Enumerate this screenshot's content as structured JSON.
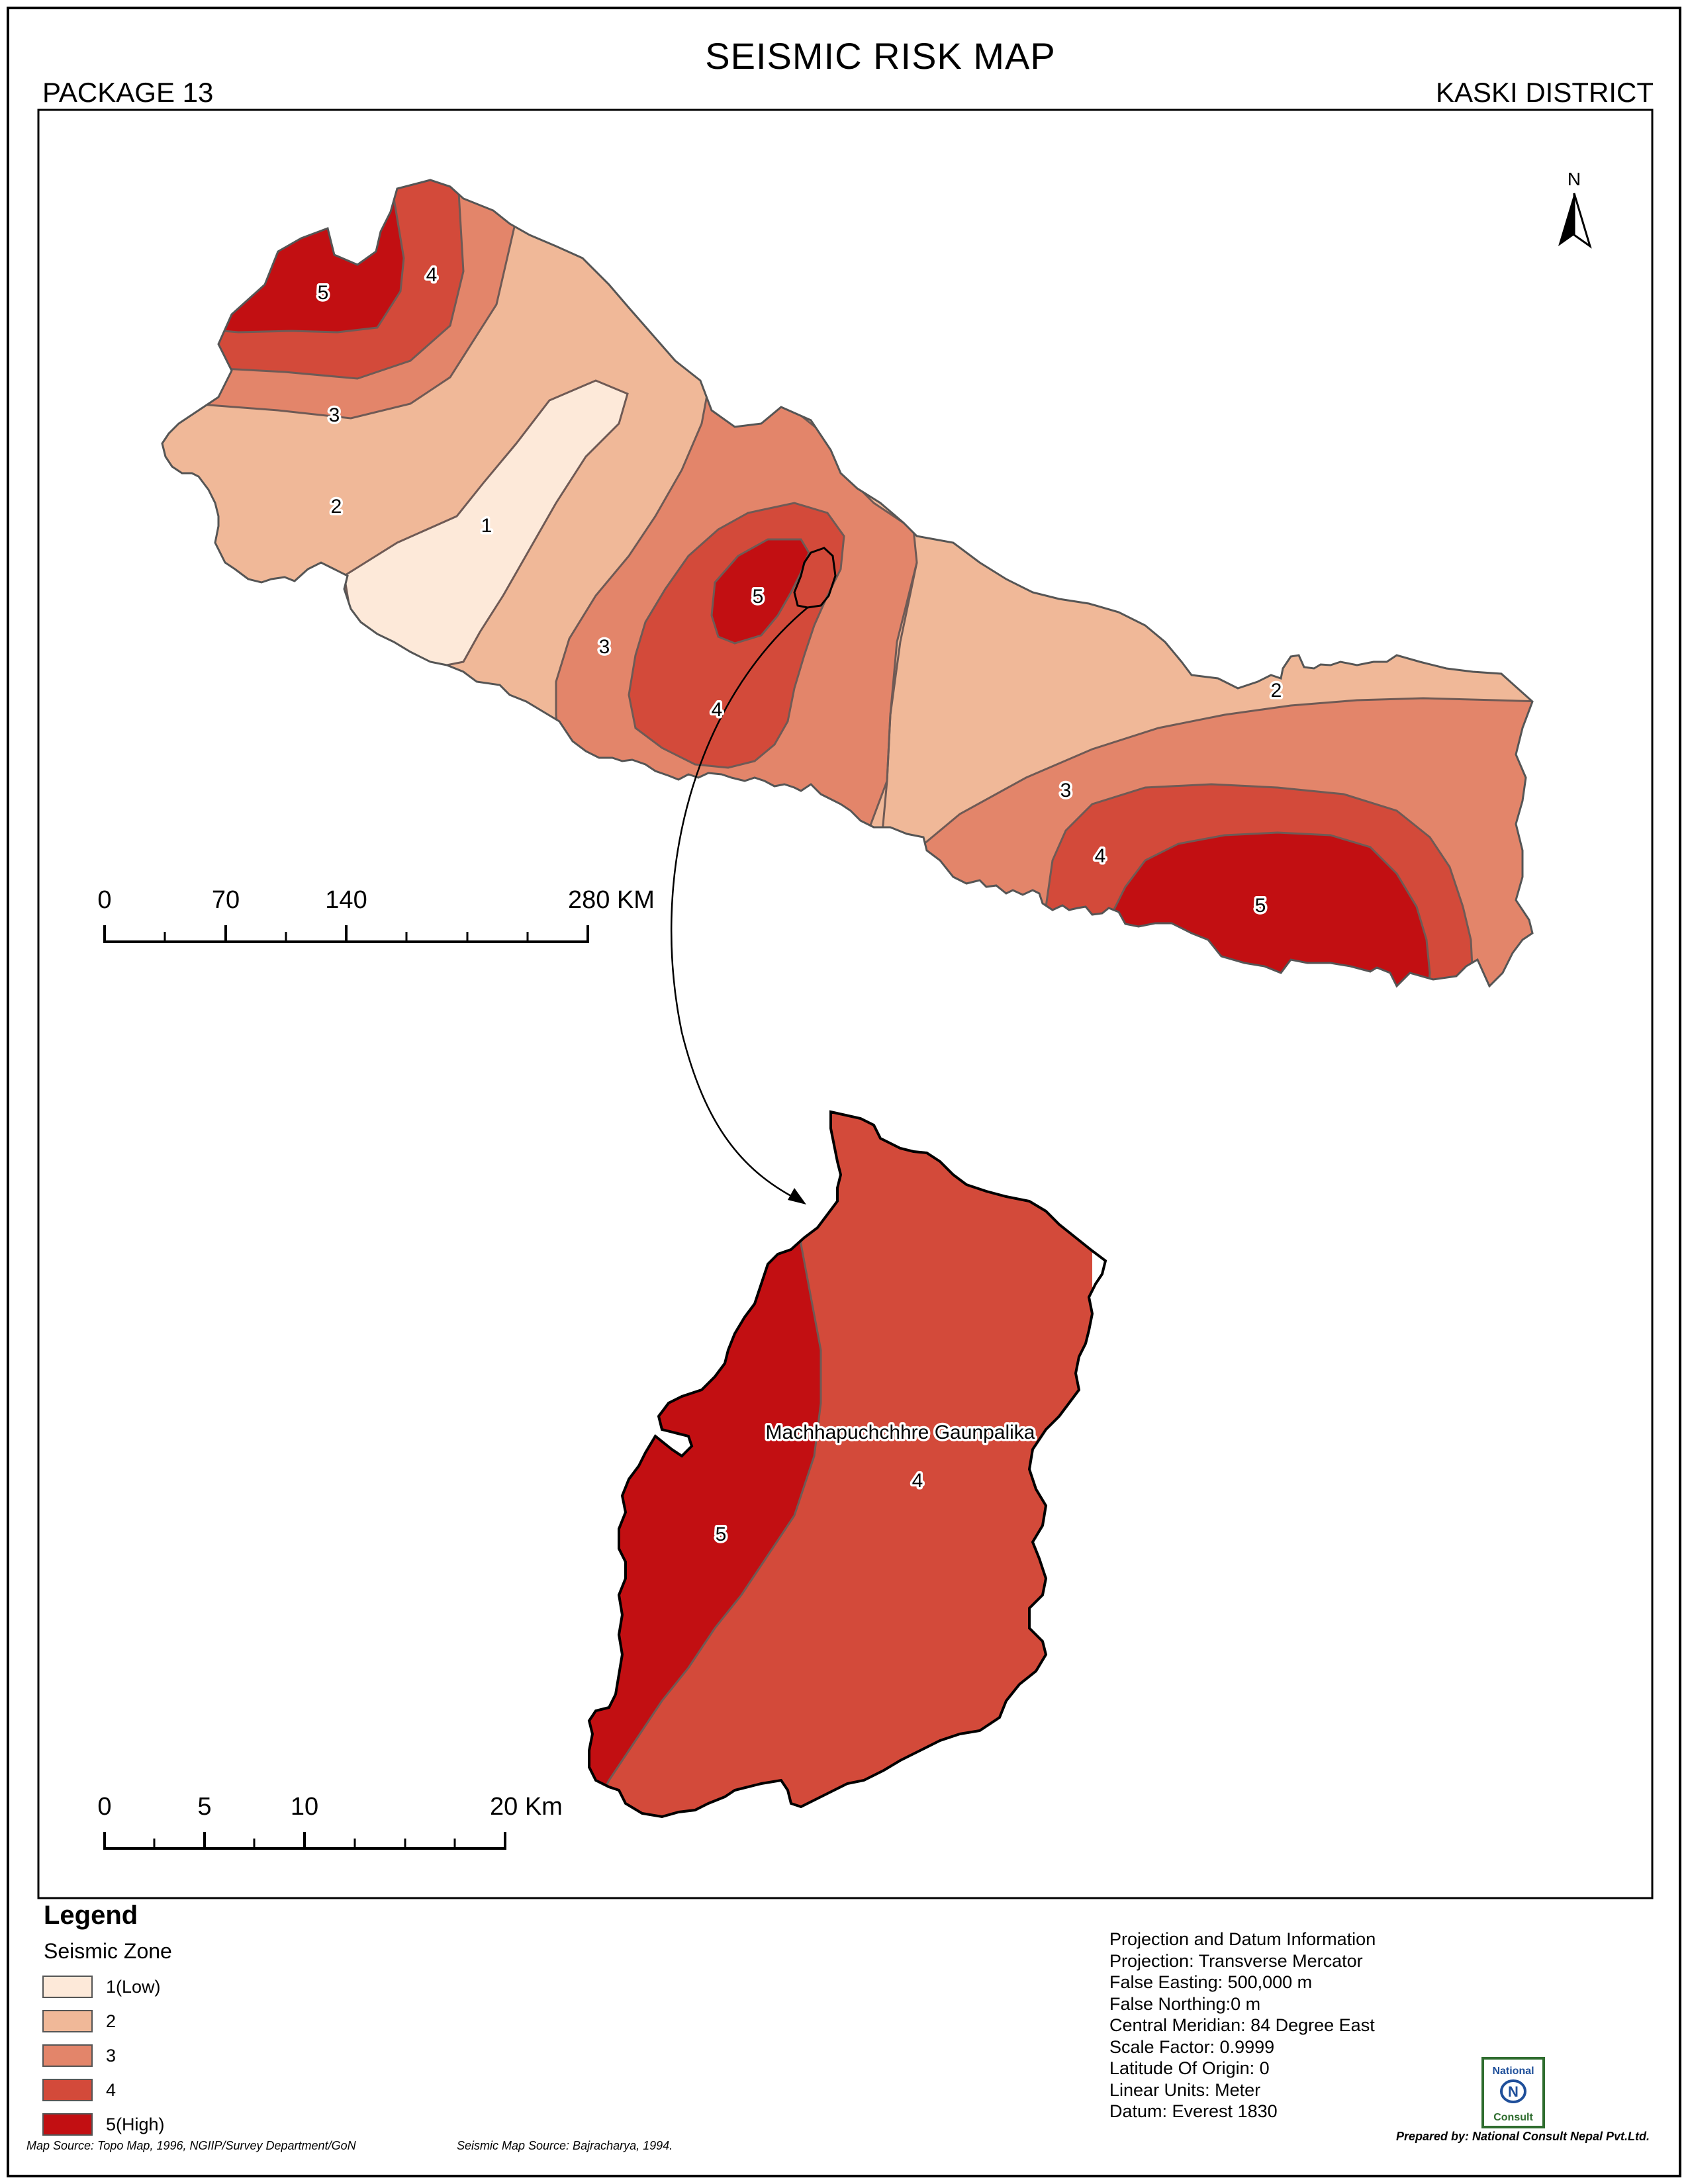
{
  "map_title": "SEISMIC RISK MAP",
  "package_label": "PACKAGE 13",
  "district_label": "KASKI DISTRICT",
  "north_label": "N",
  "nepal_zone_labels": {
    "west_5": "5",
    "west_4": "4",
    "west_3": "3",
    "west_2": "2",
    "center_1": "1",
    "center_3": "3",
    "center_5": "5",
    "center_4": "4",
    "east_2": "2",
    "east_3": "3",
    "east_4": "4",
    "east_5": "5"
  },
  "inset_zone_labels": {
    "zone_4": "4",
    "zone_5": "5"
  },
  "inset_place_label": "Machhapuchchhre Gaunpalika",
  "scalebar_large": {
    "ticks": [
      "0",
      "70",
      "140"
    ],
    "end_label": "280 KM"
  },
  "scalebar_small": {
    "ticks": [
      "0",
      "5",
      "10"
    ],
    "end_label": "20 Km"
  },
  "legend": {
    "title": "Legend",
    "subtitle": "Seismic Zone",
    "items": [
      {
        "label": "1(Low)",
        "color": "#fde9d9"
      },
      {
        "label": "2",
        "color": "#f0b898"
      },
      {
        "label": "3",
        "color": "#e3856a"
      },
      {
        "label": "4",
        "color": "#d34a3a"
      },
      {
        "label": "5(High)",
        "color": "#c20f12"
      }
    ]
  },
  "projection_info": [
    "Projection and Datum Information",
    "Projection: Transverse Mercator",
    "False Easting: 500,000 m",
    "False Northing:0 m",
    "Central Meridian: 84 Degree East",
    "Scale Factor: 0.9999",
    "Latitude Of Origin: 0",
    "Linear Units: Meter",
    "Datum: Everest 1830"
  ],
  "logo_text": {
    "line1": "National",
    "line2": "Consult"
  },
  "map_source": "Map Source: Topo Map, 1996, NGIIP/Survey Department/GoN",
  "seismic_source": "Seismic Map Source: Bajracharya, 1994.",
  "prepared_by": "Prepared by: National Consult Nepal Pvt.Ltd."
}
